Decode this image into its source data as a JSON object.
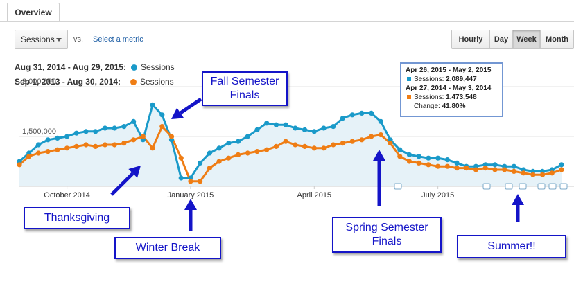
{
  "tab": {
    "label": "Overview"
  },
  "controls": {
    "metric_select": "Sessions",
    "vs_label": "vs.",
    "select_metric_link": "Select a metric",
    "granularity": [
      {
        "label": "Hourly",
        "active": false
      },
      {
        "label": "Day",
        "active": false
      },
      {
        "label": "Week",
        "active": true
      },
      {
        "label": "Month",
        "active": false
      }
    ]
  },
  "legend": [
    {
      "range": "Aug 31, 2014 - Aug 29, 2015:",
      "series": "Sessions",
      "color": "#1a9ac9"
    },
    {
      "range": "Sep 1, 2013 - Aug 30, 2014:",
      "series": "Sessions",
      "color": "#ef7d14"
    }
  ],
  "tooltip": {
    "date1": "Apr 26, 2015 - May 2, 2015",
    "label1": "Sessions:",
    "value1": "2,089,447",
    "date2": "Apr 27, 2014 - May 3, 2014",
    "label2": "Sessions:",
    "value2": "1,473,548",
    "change_label": "Change:",
    "change_value": "41.80%"
  },
  "callouts": {
    "fall_finals": "Fall Semester Finals",
    "thanksgiving": "Thanksgiving",
    "winter_break": "Winter Break",
    "spring_finals": "Spring Semester Finals",
    "summer": "Summer!!"
  },
  "chart_data": {
    "type": "line",
    "ylim": [
      0,
      3500000
    ],
    "yticks": [
      1500000,
      3000000
    ],
    "ytick_labels": [
      "1,500,000",
      "3,000,000"
    ],
    "xtick_labels": [
      "October 2014",
      "January 2015",
      "April 2015",
      "July 2015"
    ],
    "xtick_weeks": [
      5,
      18,
      31,
      44
    ],
    "grid": true,
    "legend_position": "top-left",
    "series": [
      {
        "name": "Sessions",
        "color": "#1a9ac9",
        "values": [
          750000,
          1000000,
          1250000,
          1400000,
          1450000,
          1500000,
          1600000,
          1650000,
          1650000,
          1750000,
          1750000,
          1800000,
          1950000,
          1400000,
          2450000,
          2150000,
          1400000,
          250000,
          250000,
          700000,
          1000000,
          1150000,
          1300000,
          1350000,
          1500000,
          1700000,
          1900000,
          1850000,
          1850000,
          1750000,
          1700000,
          1650000,
          1750000,
          1800000,
          2050000,
          2150000,
          2200000,
          2200000,
          1950000,
          1400000,
          1100000,
          950000,
          900000,
          850000,
          850000,
          800000,
          700000,
          600000,
          600000,
          650000,
          650000,
          600000,
          600000,
          500000,
          450000,
          450000,
          500000,
          650000
        ]
      },
      {
        "name": "Sessions",
        "color": "#ef7d14",
        "values": [
          650000,
          900000,
          1000000,
          1050000,
          1100000,
          1150000,
          1200000,
          1250000,
          1200000,
          1250000,
          1250000,
          1300000,
          1400000,
          1500000,
          1150000,
          1800000,
          1500000,
          850000,
          150000,
          150000,
          550000,
          750000,
          850000,
          950000,
          1000000,
          1050000,
          1100000,
          1200000,
          1350000,
          1250000,
          1200000,
          1150000,
          1150000,
          1250000,
          1300000,
          1350000,
          1400000,
          1500000,
          1550000,
          1300000,
          900000,
          750000,
          700000,
          650000,
          600000,
          600000,
          550000,
          550000,
          500000,
          550000,
          500000,
          500000,
          450000,
          400000,
          350000,
          350000,
          400000,
          500000
        ]
      }
    ]
  }
}
